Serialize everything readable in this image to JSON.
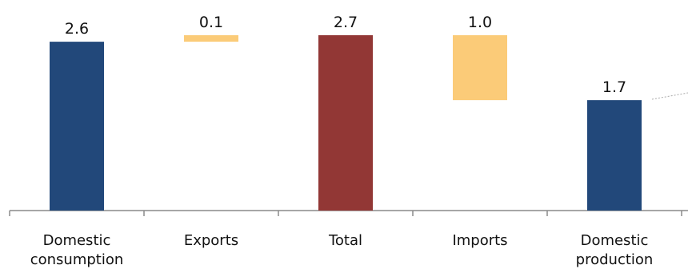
{
  "chart_data": {
    "type": "bar",
    "subtype": "waterfall",
    "categories": [
      [
        "Domestic",
        "consumption"
      ],
      [
        "Exports"
      ],
      [
        "Total"
      ],
      [
        "Imports"
      ],
      [
        "Domestic",
        "production"
      ]
    ],
    "bars": [
      {
        "label": "2.6",
        "value": 2.6,
        "base": 0,
        "top": 2.6,
        "color": "#22487A"
      },
      {
        "label": "0.1",
        "value": 0.1,
        "base": 2.6,
        "top": 2.7,
        "color": "#FBCB78"
      },
      {
        "label": "2.7",
        "value": 2.7,
        "base": 0,
        "top": 2.7,
        "color": "#923735"
      },
      {
        "label": "1.0",
        "value": 1.0,
        "base": 1.7,
        "top": 2.7,
        "color": "#FBCB78"
      },
      {
        "label": "1.7",
        "value": 1.7,
        "base": 0,
        "top": 1.7,
        "color": "#22487A"
      }
    ],
    "title": "",
    "xlabel": "",
    "ylabel": "",
    "ylim": [
      0,
      2.7
    ],
    "grid": false,
    "legend": "none"
  }
}
